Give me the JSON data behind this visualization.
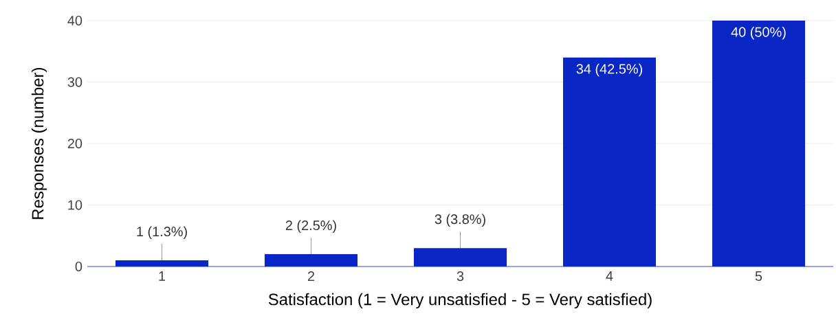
{
  "chart_data": {
    "type": "bar",
    "xlabel": "Satisfaction (1 = Very unsatisfied - 5 = Very satisfied)",
    "ylabel": "Responses (number)",
    "categories": [
      "1",
      "2",
      "3",
      "4",
      "5"
    ],
    "values": [
      1,
      2,
      3,
      34,
      40
    ],
    "value_labels": [
      "1 (1.3%)",
      "2 (2.5%)",
      "3 (3.8%)",
      "34 (42.5%)",
      "40 (50%)"
    ],
    "color": "#0827c4",
    "ylim": [
      0,
      40
    ],
    "yticks": [
      0,
      10,
      20,
      30,
      40
    ],
    "grid": "y"
  }
}
